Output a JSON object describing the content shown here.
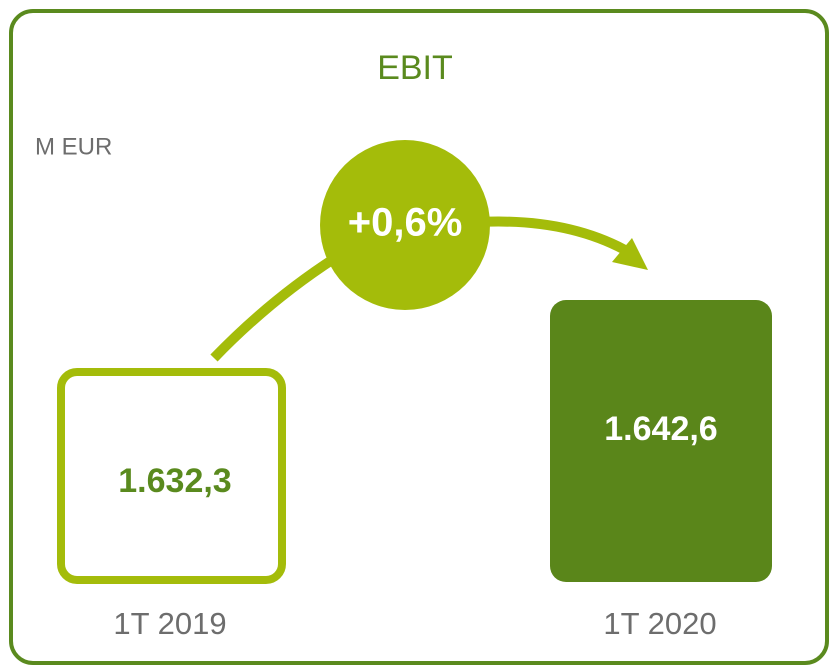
{
  "title": "EBIT",
  "unit": "M EUR",
  "change": "+0,6%",
  "items": [
    {
      "label": "1T 2019",
      "value": "1.632,3"
    },
    {
      "label": "1T 2020",
      "value": "1.642,6"
    }
  ]
}
